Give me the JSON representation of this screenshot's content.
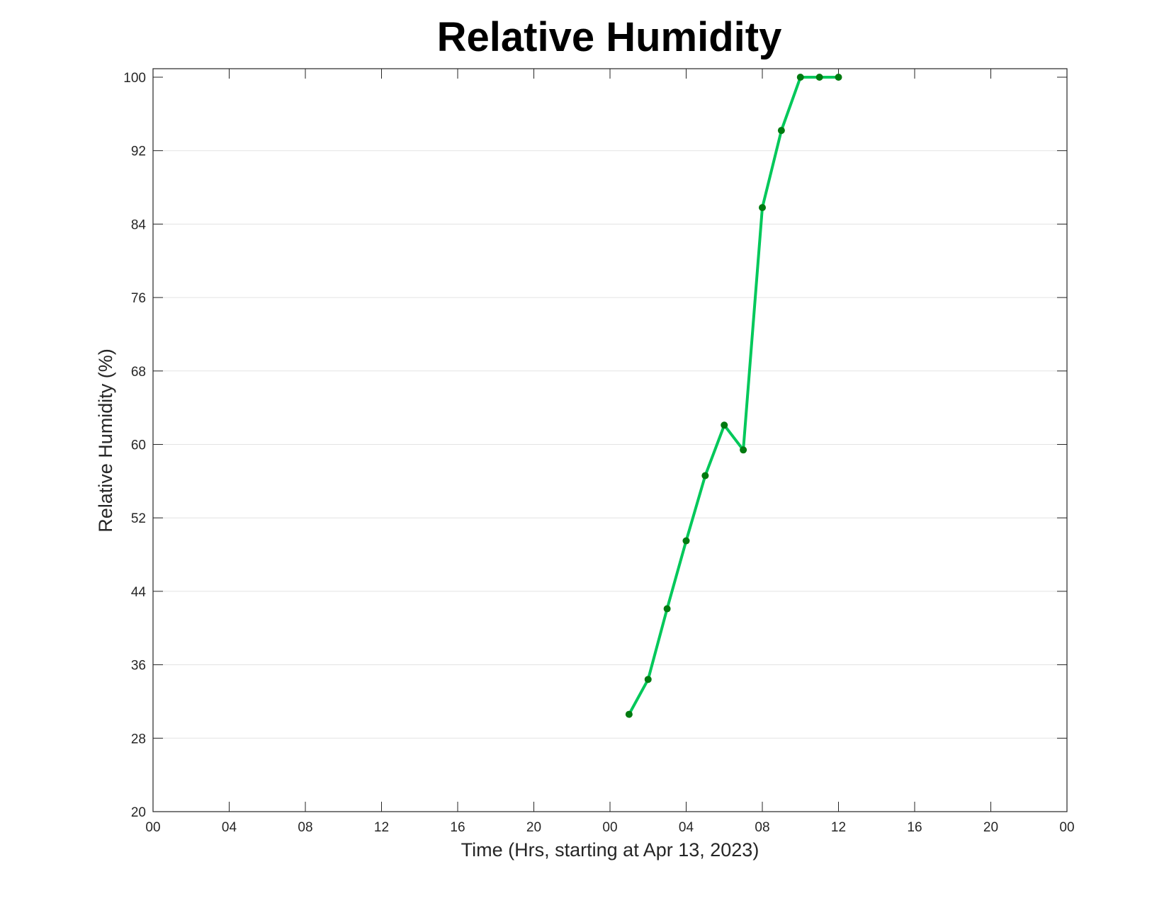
{
  "chart_data": {
    "type": "line",
    "title": "Relative Humidity",
    "xlabel": "Time (Hrs, starting at Apr 13, 2023)",
    "ylabel": "Relative Humidity (%)",
    "xlim": [
      "2023-04-13 00:00",
      "2023-04-15 00:00"
    ],
    "ylim": [
      20,
      100
    ],
    "x_tick_labels": [
      "00",
      "04",
      "08",
      "12",
      "16",
      "20",
      "00",
      "04",
      "08",
      "12",
      "16",
      "20",
      "00"
    ],
    "y_tick_labels": [
      "20",
      "28",
      "36",
      "44",
      "52",
      "60",
      "68",
      "76",
      "84",
      "92",
      "100"
    ],
    "grid": "horizontal",
    "line_color": "#00c85a",
    "marker_color": "#007a10",
    "series": [
      {
        "x": [
          "2023-04-14 01:00",
          "2023-04-14 02:00",
          "2023-04-14 03:00",
          "2023-04-14 04:00",
          "2023-04-14 05:00",
          "2023-04-14 06:00",
          "2023-04-14 07:00",
          "2023-04-14 08:00",
          "2023-04-14 09:00",
          "2023-04-14 10:00",
          "2023-04-14 11:00",
          "2023-04-14 12:00"
        ],
        "values": [
          30.6,
          34.4,
          42.1,
          49.5,
          56.6,
          62.1,
          59.4,
          85.8,
          94.2,
          100,
          100,
          100
        ]
      }
    ]
  }
}
